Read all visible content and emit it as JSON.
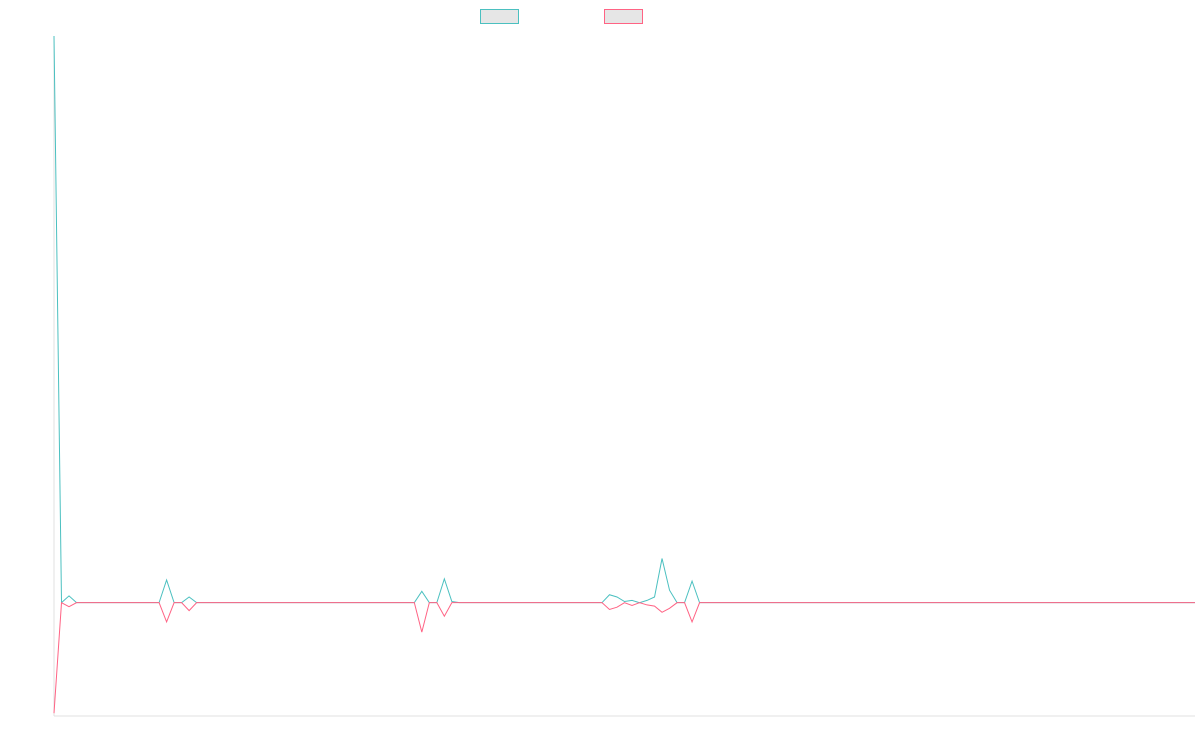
{
  "chart_data": {
    "type": "line",
    "title": "",
    "xlabel": "",
    "ylabel": "",
    "legend_position": "top-center",
    "grid": false,
    "x_count": 153,
    "ylim": [
      -20,
      100
    ],
    "series": [
      {
        "name": "",
        "color": "#4bc0c0",
        "points": [
          [
            0,
            100
          ],
          [
            1,
            0
          ],
          [
            2,
            1.2
          ],
          [
            3,
            0
          ],
          [
            14,
            0
          ],
          [
            15,
            4
          ],
          [
            16,
            0
          ],
          [
            17,
            0
          ],
          [
            18,
            1
          ],
          [
            19,
            0
          ],
          [
            48,
            0
          ],
          [
            49,
            2
          ],
          [
            50,
            0
          ],
          [
            51,
            0
          ],
          [
            52,
            4.2
          ],
          [
            53,
            0.2
          ],
          [
            54,
            0
          ],
          [
            73,
            0
          ],
          [
            74,
            1.4
          ],
          [
            75,
            1
          ],
          [
            76,
            0.2
          ],
          [
            77,
            0.4
          ],
          [
            78,
            0
          ],
          [
            79,
            0.4
          ],
          [
            80,
            1
          ],
          [
            81,
            7.8
          ],
          [
            82,
            2.2
          ],
          [
            83,
            0
          ],
          [
            84,
            0
          ],
          [
            85,
            3.8
          ],
          [
            86,
            0
          ],
          [
            152,
            0
          ]
        ]
      },
      {
        "name": "",
        "color": "#ff6384",
        "points": [
          [
            0,
            -19.5
          ],
          [
            1,
            0
          ],
          [
            2,
            -0.7
          ],
          [
            3,
            0
          ],
          [
            14,
            0
          ],
          [
            15,
            -3.4
          ],
          [
            16,
            0
          ],
          [
            17,
            0
          ],
          [
            18,
            -1.4
          ],
          [
            19,
            0
          ],
          [
            48,
            0
          ],
          [
            49,
            -5.2
          ],
          [
            50,
            0
          ],
          [
            51,
            0
          ],
          [
            52,
            -2.4
          ],
          [
            53,
            0
          ],
          [
            54,
            0
          ],
          [
            73,
            0
          ],
          [
            74,
            -1.2
          ],
          [
            75,
            -0.8
          ],
          [
            76,
            0
          ],
          [
            77,
            -0.5
          ],
          [
            78,
            0
          ],
          [
            79,
            -0.4
          ],
          [
            80,
            -0.6
          ],
          [
            81,
            -1.7
          ],
          [
            82,
            -1
          ],
          [
            83,
            0
          ],
          [
            84,
            0
          ],
          [
            85,
            -3.4
          ],
          [
            86,
            0
          ],
          [
            152,
            0
          ]
        ]
      }
    ]
  }
}
